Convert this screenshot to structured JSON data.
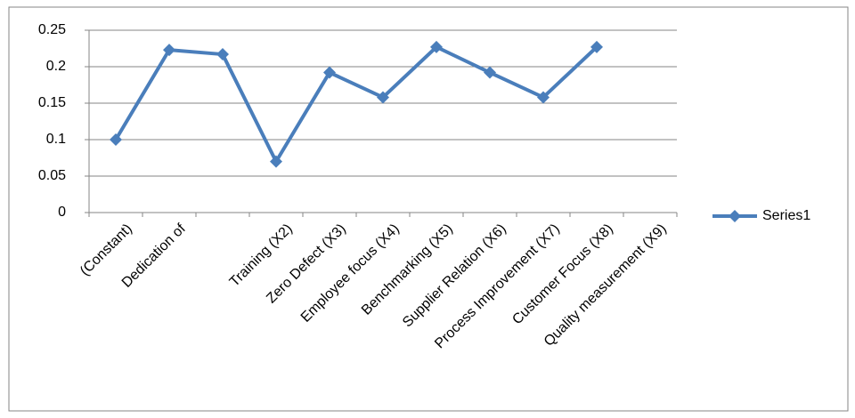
{
  "chart_data": {
    "type": "line",
    "categories": [
      "(Constant)",
      "Dedication of",
      null,
      "Training (X2)",
      "Zero Defect (X3)",
      "Employee focus (X4)",
      "Benchmarking (X5)",
      "Supplier Relation (X6)",
      "Process Improvement (X7)",
      "Customer Focus (X8)",
      "Quality measurement (X9)"
    ],
    "series": [
      {
        "name": "Series1",
        "color": "#4a7ebb",
        "values": [
          0.1,
          0.223,
          0.217,
          0.07,
          0.192,
          0.158,
          0.227,
          0.192,
          0.158,
          0.227,
          null
        ]
      }
    ],
    "ylim": [
      0,
      0.25
    ],
    "yticks": [
      0,
      0.05,
      0.1,
      0.15,
      0.2,
      0.25
    ],
    "grid": true,
    "legend": "right"
  }
}
